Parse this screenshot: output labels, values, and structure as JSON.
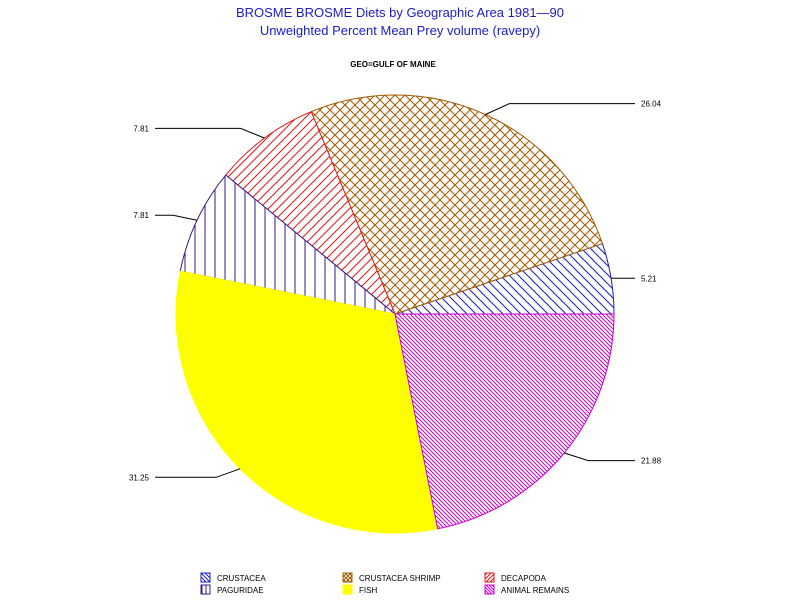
{
  "chart_data": {
    "type": "pie",
    "title": "BROSME BROSME Diets by Geographic Area 1981—90",
    "subtitle": "Unweighted Percent Mean Prey volume (ravepy)",
    "group_label": "GEO=GULF OF MAINE",
    "slices": [
      {
        "name": "CRUSTACEA",
        "value": 5.21,
        "label": "5.21",
        "color": "#1c1cc8",
        "pattern": "hatch-down"
      },
      {
        "name": "CRUSTACEA SHRIMP",
        "value": 26.04,
        "label": "26.04",
        "color": "#a05a00",
        "pattern": "crosshatch"
      },
      {
        "name": "DECAPODA",
        "value": 7.81,
        "label": "7.81",
        "color": "#e01818",
        "pattern": "hatch-up"
      },
      {
        "name": "PAGURIDAE",
        "value": 7.81,
        "label": "7.81",
        "color": "#3a1a88",
        "pattern": "vertical"
      },
      {
        "name": "FISH",
        "value": 31.25,
        "label": "31.25",
        "color": "#ffff00",
        "pattern": "solid"
      },
      {
        "name": "ANIMAL REMAINS",
        "value": 21.88,
        "label": "21.88",
        "color": "#c800c8",
        "pattern": "dense-down"
      }
    ],
    "legend": {
      "position": "bottom",
      "items": [
        "CRUSTACEA",
        "CRUSTACEA SHRIMP",
        "DECAPODA",
        "PAGURIDAE",
        "FISH",
        "ANIMAL REMAINS"
      ]
    }
  }
}
